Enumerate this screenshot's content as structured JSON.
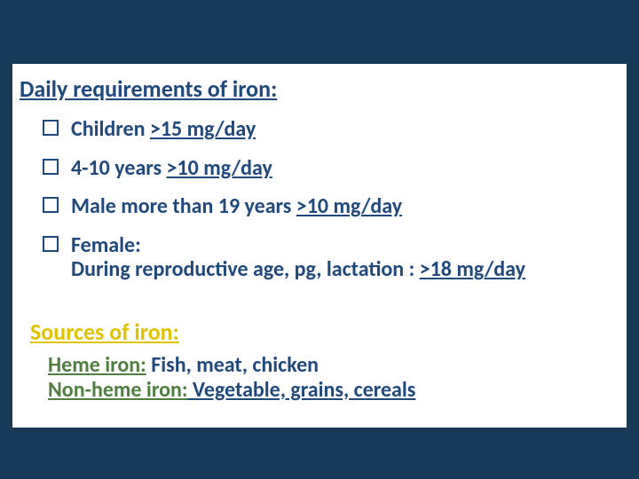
{
  "background_color": "#163a58",
  "box_background": "#ffffff",
  "navy": "#1f497d",
  "yellow": "#e0c200",
  "green": "#4f7f3f",
  "section1": {
    "title": "Daily requirements of iron:",
    "items": [
      {
        "pre": "Children ",
        "u": ">15 mg/day",
        "post": ""
      },
      {
        "pre": "4-10 years ",
        "u": ">10 mg/day",
        "post": ""
      },
      {
        "pre": "Male more than 19 years ",
        "u": ">10 mg/day",
        "post": ""
      },
      {
        "pre": "Female:",
        "u": "",
        "post": "",
        "line2_pre": "During reproductive age, pg, lactation : ",
        "line2_u": ">18 mg/day"
      }
    ]
  },
  "section2": {
    "title": "Sources of iron:",
    "lines": [
      {
        "label": "Heme iron:",
        "value": " Fish, meat, chicken"
      },
      {
        "label": "Non-heme iron:",
        "value_u": " Vegetable, grains, cereals"
      }
    ]
  }
}
